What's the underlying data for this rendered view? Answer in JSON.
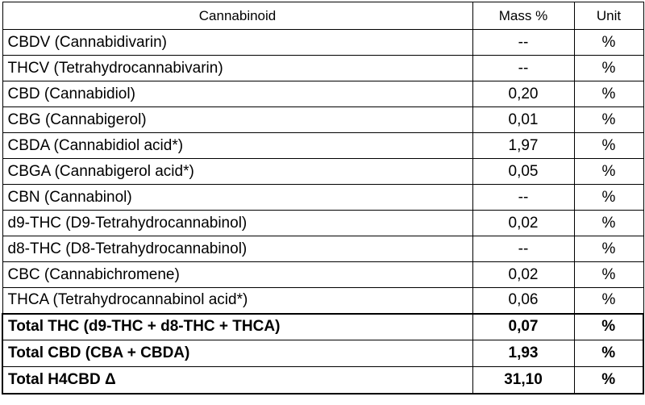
{
  "table": {
    "headers": [
      "Cannabinoid",
      "Mass %",
      "Unit"
    ],
    "rows": [
      {
        "name": "CBDV (Cannabidivarin)",
        "value": "--",
        "unit": "%"
      },
      {
        "name": "THCV (Tetrahydrocannabivarin)",
        "value": "--",
        "unit": "%"
      },
      {
        "name": "CBD (Cannabidiol)",
        "value": "0,20",
        "unit": "%"
      },
      {
        "name": "CBG (Cannabigerol)",
        "value": "0,01",
        "unit": "%"
      },
      {
        "name": "CBDA (Cannabidiol acid*)",
        "value": "1,97",
        "unit": "%"
      },
      {
        "name": "CBGA (Cannabigerol acid*)",
        "value": "0,05",
        "unit": "%"
      },
      {
        "name": "CBN (Cannabinol)",
        "value": "--",
        "unit": "%"
      },
      {
        "name": "d9-THC (D9-Tetrahydrocannabinol)",
        "value": "0,02",
        "unit": "%"
      },
      {
        "name": "d8-THC (D8-Tetrahydrocannabinol)",
        "value": "--",
        "unit": "%"
      },
      {
        "name": "CBC (Cannabichromene)",
        "value": "0,02",
        "unit": "%"
      },
      {
        "name": "THCA (Tetrahydrocannabinol acid*)",
        "value": "0,06",
        "unit": "%"
      }
    ],
    "totals": [
      {
        "name": "Total THC (d9-THC + d8-THC + THCA)",
        "value": "0,07",
        "unit": "%"
      },
      {
        "name": "Total CBD (CBA + CBDA)",
        "value": "1,93",
        "unit": "%"
      },
      {
        "name": "Total H4CBD Δ",
        "value": "31,10",
        "unit": "%"
      }
    ]
  }
}
